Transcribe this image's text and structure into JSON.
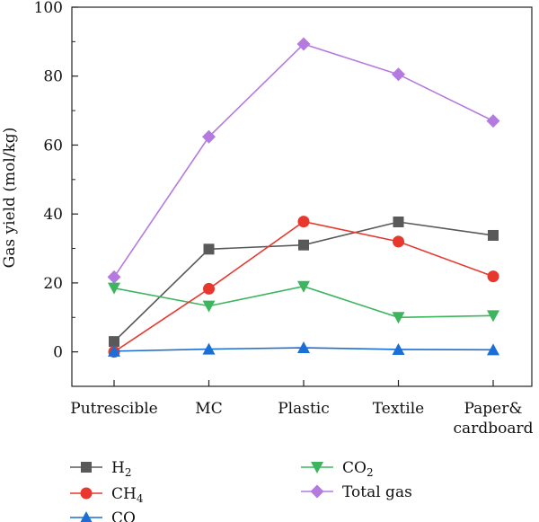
{
  "chart_data": {
    "type": "line",
    "xlabel": "",
    "ylabel": "Gas yield (mol/kg)",
    "categories": [
      "Putrescible",
      "MC",
      "Plastic",
      "Textile",
      "Paper& cardboard"
    ],
    "category_lines": [
      [
        "Putrescible"
      ],
      [
        "MC"
      ],
      [
        "Plastic"
      ],
      [
        "Textile"
      ],
      [
        "Paper&",
        "cardboard"
      ]
    ],
    "ylim": [
      -10,
      100
    ],
    "yticks": [
      0,
      20,
      40,
      60,
      80,
      100
    ],
    "grid": false,
    "legend_position": "bottom",
    "series": [
      {
        "name": "H2",
        "label_base": "H",
        "label_sub": "2",
        "color": "#595959",
        "marker": "square",
        "values": [
          3.0,
          29.8,
          31.0,
          37.7,
          33.8
        ]
      },
      {
        "name": "CH4",
        "label_base": "CH",
        "label_sub": "4",
        "color": "#e8382e",
        "marker": "circle",
        "values": [
          0.0,
          18.3,
          37.8,
          32.0,
          21.9
        ]
      },
      {
        "name": "CO",
        "label_base": "CO",
        "label_sub": "",
        "color": "#1a6fd6",
        "marker": "triangle-up",
        "values": [
          0.2,
          0.8,
          1.2,
          0.7,
          0.6
        ]
      },
      {
        "name": "CO2",
        "label_base": "CO",
        "label_sub": "2",
        "color": "#3cb55e",
        "marker": "triangle-down",
        "values": [
          18.5,
          13.3,
          19.0,
          10.0,
          10.5
        ]
      },
      {
        "name": "Total gas",
        "label_base": "Total gas",
        "label_sub": "",
        "color": "#b57ae0",
        "marker": "diamond",
        "values": [
          21.7,
          62.4,
          89.3,
          80.5,
          67.0
        ]
      }
    ]
  }
}
